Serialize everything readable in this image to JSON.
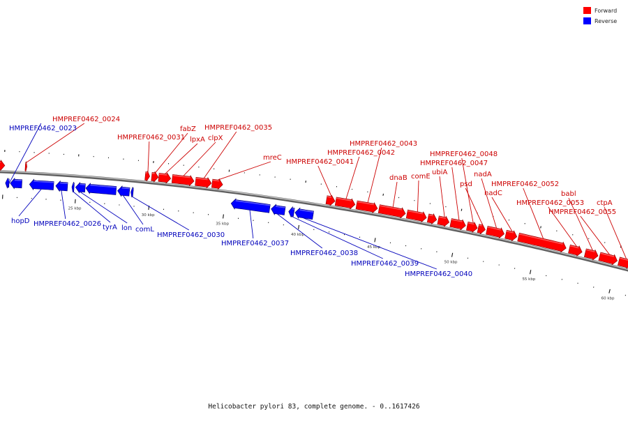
{
  "legend": {
    "forward": {
      "label": "Forward",
      "color": "#ff0000"
    },
    "reverse": {
      "label": "Reverse",
      "color": "#0000ff"
    }
  },
  "caption": "Helicobacter pylori 83, complete genome. - 0..1617426",
  "colors": {
    "forward_label": "#cc0000",
    "reverse_label": "#0000bb",
    "backbone": "#8a8a8a"
  },
  "track": {
    "start_bp": 19500,
    "end_bp": 61200
  },
  "scale_labels": [
    {
      "bp": 25000,
      "text": "25 kbp"
    },
    {
      "bp": 30000,
      "text": "30 kbp"
    },
    {
      "bp": 35000,
      "text": "35 kbp"
    },
    {
      "bp": 40000,
      "text": "40 kbp"
    },
    {
      "bp": 45000,
      "text": "45 kbp"
    },
    {
      "bp": 50000,
      "text": "50 kbp"
    },
    {
      "bp": 55000,
      "text": "55 kbp"
    },
    {
      "bp": 60000,
      "text": "60 kbp"
    }
  ],
  "genes": [
    {
      "name": "",
      "strand": "+",
      "start": 19500,
      "end": 20050
    },
    {
      "name": "HMPREF0462_0023",
      "strand": "-",
      "start": 20150,
      "end": 20400
    },
    {
      "name": "",
      "strand": "-",
      "start": 20480,
      "end": 21280
    },
    {
      "name": "HMPREF0462_0024",
      "strand": "+",
      "start": 21450,
      "end": 21560
    },
    {
      "name": "hopD",
      "strand": "-",
      "start": 21800,
      "end": 23450
    },
    {
      "name": "HMPREF0462_0026",
      "strand": "-",
      "start": 23600,
      "end": 24400
    },
    {
      "name": "tyrA",
      "strand": "-",
      "start": 24700,
      "end": 24850
    },
    {
      "name": "lon",
      "strand": "-",
      "start": 24950,
      "end": 25600
    },
    {
      "name": "",
      "strand": "-",
      "start": 25650,
      "end": 27700
    },
    {
      "name": "comL",
      "strand": "-",
      "start": 27800,
      "end": 28600
    },
    {
      "name": "HMPREF0462_0030",
      "strand": "-",
      "start": 28700,
      "end": 28850
    },
    {
      "name": "HMPREF0462_0031",
      "strand": "+",
      "start": 29550,
      "end": 29850
    },
    {
      "name": "fabZ",
      "strand": "+",
      "start": 29980,
      "end": 30420
    },
    {
      "name": "lpxA",
      "strand": "+",
      "start": 30450,
      "end": 31250
    },
    {
      "name": "clpX",
      "strand": "+",
      "start": 31350,
      "end": 32800
    },
    {
      "name": "HMPREF0462_0035",
      "strand": "+",
      "start": 32900,
      "end": 33950
    },
    {
      "name": "mreC",
      "strand": "+",
      "start": 34000,
      "end": 34700
    },
    {
      "name": "HMPREF0462_0037",
      "strand": "-",
      "start": 35400,
      "end": 37950
    },
    {
      "name": "HMPREF0462_0038",
      "strand": "-",
      "start": 38050,
      "end": 38950
    },
    {
      "name": "HMPREF0462_0039",
      "strand": "-",
      "start": 39200,
      "end": 39550
    },
    {
      "name": "HMPREF0462_0040",
      "strand": "-",
      "start": 39620,
      "end": 40800
    },
    {
      "name": "HMPREF0462_0041",
      "strand": "+",
      "start": 41500,
      "end": 42050
    },
    {
      "name": "HMPREF0462_0042",
      "strand": "+",
      "start": 42100,
      "end": 43350
    },
    {
      "name": "HMPREF0462_0043",
      "strand": "+",
      "start": 43450,
      "end": 44800
    },
    {
      "name": "dnaB",
      "strand": "+",
      "start": 44900,
      "end": 46600
    },
    {
      "name": "comE",
      "strand": "+",
      "start": 46700,
      "end": 47950
    },
    {
      "name": "",
      "strand": "+",
      "start": 48050,
      "end": 48600
    },
    {
      "name": "ubiA",
      "strand": "+",
      "start": 48700,
      "end": 49400
    },
    {
      "name": "HMPREF0462_0047",
      "strand": "+",
      "start": 49500,
      "end": 50450
    },
    {
      "name": "HMPREF0462_0048",
      "strand": "+",
      "start": 50550,
      "end": 51200
    },
    {
      "name": "psd",
      "strand": "+",
      "start": 51250,
      "end": 51700
    },
    {
      "name": "nadA",
      "strand": "+",
      "start": 51800,
      "end": 52900
    },
    {
      "name": "nadC",
      "strand": "+",
      "start": 53000,
      "end": 53700
    },
    {
      "name": "HMPREF0462_0052",
      "strand": "+",
      "start": 53800,
      "end": 56800
    },
    {
      "name": "HMPREF0462_0053",
      "strand": "+",
      "start": 57000,
      "end": 57800
    },
    {
      "name": "babl",
      "strand": "+",
      "start": 58000,
      "end": 58800
    },
    {
      "name": "HMPREF0462_0055",
      "strand": "+",
      "start": 58900,
      "end": 60000
    },
    {
      "name": "ctpA",
      "strand": "+",
      "start": 60100,
      "end": 60900
    },
    {
      "name": "",
      "strand": "+",
      "start": 60950,
      "end": 61200
    }
  ]
}
